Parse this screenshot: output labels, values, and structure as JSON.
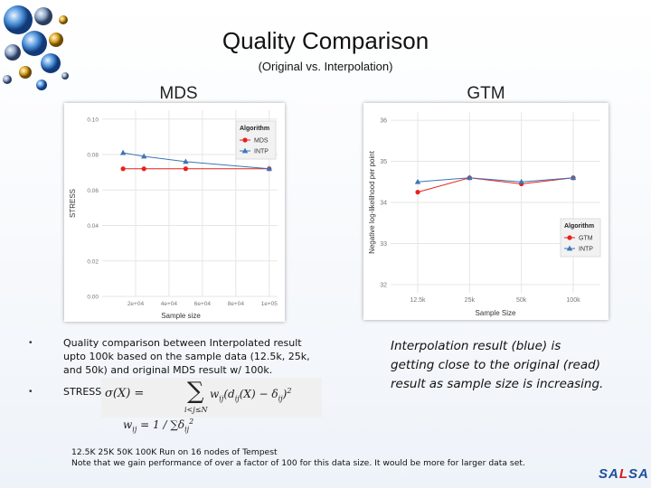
{
  "title": "Quality Comparison",
  "subtitle": "(Original vs. Interpolation)",
  "left_panel_title": "MDS",
  "right_panel_title": "GTM",
  "colors": {
    "series_original": "#e8211c",
    "series_intp": "#3c75b4",
    "grid": "#e6e6e6",
    "salsa_blue": "#1d4f9c",
    "salsa_red": "#d32020"
  },
  "chart_data": [
    {
      "type": "line",
      "title": "MDS",
      "xlabel": "Sample size",
      "ylabel": "STRESS",
      "x": [
        12500,
        25000,
        50000,
        100000
      ],
      "xlim": [
        0,
        105000
      ],
      "xticks": [
        20000,
        40000,
        60000,
        80000,
        100000
      ],
      "xtick_labels": [
        "2e+04",
        "4e+04",
        "6e+04",
        "8e+04",
        "1e+05"
      ],
      "ylim": [
        0,
        0.105
      ],
      "yticks": [
        0,
        0.02,
        0.04,
        0.06,
        0.08,
        0.1
      ],
      "ytick_labels": [
        "0.00",
        "0.02",
        "0.04",
        "0.06",
        "0.08",
        "0.10"
      ],
      "legend_title": "Algorithm",
      "legend_position": "top-right",
      "series": [
        {
          "name": "MDS",
          "values": [
            0.072,
            0.072,
            0.072,
            0.072
          ]
        },
        {
          "name": "INTP",
          "values": [
            0.081,
            0.079,
            0.076,
            0.072
          ]
        }
      ]
    },
    {
      "type": "line",
      "title": "GTM",
      "xlabel": "Sample Size",
      "ylabel": "Negative log-likelihood per point",
      "categories": [
        "12.5k",
        "25k",
        "50k",
        "100k"
      ],
      "ylim": [
        31.8,
        36.2
      ],
      "yticks": [
        32,
        33,
        34,
        35,
        36
      ],
      "ytick_labels": [
        "32",
        "33",
        "34",
        "35",
        "36"
      ],
      "legend_title": "Algorithm",
      "legend_position": "bottom-right",
      "series": [
        {
          "name": "GTM",
          "values": [
            34.25,
            34.6,
            34.45,
            34.6
          ]
        },
        {
          "name": "INTP",
          "values": [
            34.5,
            34.6,
            34.5,
            34.6
          ]
        }
      ]
    }
  ],
  "bullets": [
    "Quality comparison between Interpolated result upto 100k based on the sample data (12.5k, 25k, and 50k) and original MDS result w/ 100k.",
    "STRESS:"
  ],
  "bullet_marker": "•",
  "formula": {
    "lhs": "σ(X) =",
    "sum_under": "i<j≤N",
    "term": "w",
    "term_sub": "ij",
    "mid": "(d",
    "mid_sub": "ij",
    "mid2": "(X) − δ",
    "mid2_sub": "ij",
    "close": ")",
    "sup": "2"
  },
  "weight_formula": {
    "text": "w",
    "sub": "ij",
    "rest": " = 1 / ∑δ",
    "sub2": "ij",
    "sup": "2"
  },
  "right_text": "Interpolation result (blue) is getting close to the original (read) result as sample size is increasing.",
  "footnote_lines": [
    "12.5K 25K 50K 100K Run on 16 nodes of Tempest",
    "Note that we gain performance of over a factor of 100 for this data size. It would be more for larger data set."
  ],
  "logo": {
    "left": "SA",
    "mid": "L",
    "right": "SA"
  }
}
